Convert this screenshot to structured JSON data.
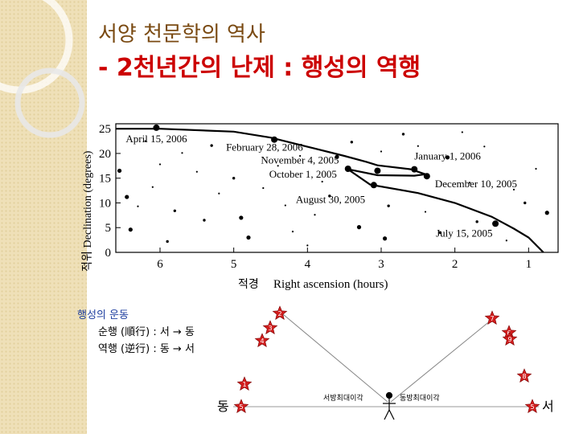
{
  "slide": {
    "title_line1": "서양 천문학의 역사",
    "title_line2": "- 2천년간의 난제 : 행성의 역행"
  },
  "chart_data": {
    "type": "scatter",
    "xlabel_ko": "적경",
    "xlabel": "Right ascension (hours)",
    "ylabel_ko": "적위",
    "ylabel": "Declination (degrees)",
    "xlim": [
      0.6,
      6.6
    ],
    "ylim": [
      0,
      26
    ],
    "x_reversed": true,
    "x_ticks": [
      6,
      5,
      4,
      3,
      2,
      1
    ],
    "y_ticks": [
      0,
      5,
      10,
      15,
      20,
      25
    ],
    "path": {
      "x": [
        6.6,
        6.0,
        5.0,
        4.5,
        3.9,
        3.5,
        3.2,
        3.05,
        2.6,
        2.4,
        2.55,
        3.05,
        3.45,
        3.15,
        2.5,
        2.0,
        1.5,
        1.2,
        1.0,
        0.8
      ],
      "y": [
        25.0,
        25.0,
        24.4,
        23.2,
        21.0,
        19.5,
        18.3,
        17.6,
        16.8,
        15.8,
        15.5,
        15.6,
        16.8,
        13.7,
        12.0,
        10.0,
        7.2,
        4.8,
        3.0,
        0.0
      ]
    },
    "labeled_points": [
      {
        "label": "April 15, 2006",
        "x": 6.05,
        "y": 25.2
      },
      {
        "label": "February 28, 2006",
        "x": 4.45,
        "y": 22.8
      },
      {
        "label": "January 1, 2006",
        "x": 2.55,
        "y": 16.8
      },
      {
        "label": "December 10, 2005",
        "x": 2.38,
        "y": 15.4
      },
      {
        "label": "November 4, 2005",
        "x": 3.05,
        "y": 16.5
      },
      {
        "label": "October 1, 2005",
        "x": 3.45,
        "y": 16.9
      },
      {
        "label": "August 30, 2005",
        "x": 3.1,
        "y": 13.6
      },
      {
        "label": "July 15, 2005",
        "x": 1.45,
        "y": 5.8
      }
    ],
    "stars": [
      {
        "x": 6.55,
        "y": 16.5
      },
      {
        "x": 4.4,
        "y": 17.5
      },
      {
        "x": 4.1,
        "y": 19.5
      },
      {
        "x": 5.4,
        "y": 6.5
      },
      {
        "x": 3.9,
        "y": 7.6
      },
      {
        "x": 2.95,
        "y": 2.8
      },
      {
        "x": 1.05,
        "y": 10.0
      },
      {
        "x": 4.3,
        "y": 9.5
      },
      {
        "x": 6.1,
        "y": 13.2
      },
      {
        "x": 5.0,
        "y": 15.0
      },
      {
        "x": 2.1,
        "y": 19.2
      },
      {
        "x": 1.6,
        "y": 21.4
      },
      {
        "x": 3.4,
        "y": 22.3
      },
      {
        "x": 5.7,
        "y": 20.1
      },
      {
        "x": 6.3,
        "y": 9.3
      },
      {
        "x": 4.8,
        "y": 3.0
      },
      {
        "x": 2.4,
        "y": 8.2
      },
      {
        "x": 1.8,
        "y": 14.1
      },
      {
        "x": 3.7,
        "y": 11.4
      },
      {
        "x": 5.2,
        "y": 11.9
      },
      {
        "x": 6.4,
        "y": 4.6
      },
      {
        "x": 2.7,
        "y": 23.9
      },
      {
        "x": 0.9,
        "y": 16.9
      },
      {
        "x": 4.6,
        "y": 13.0
      },
      {
        "x": 5.9,
        "y": 2.2
      },
      {
        "x": 3.3,
        "y": 5.1
      },
      {
        "x": 1.3,
        "y": 2.4
      },
      {
        "x": 2.2,
        "y": 4.0
      },
      {
        "x": 6.0,
        "y": 17.8
      },
      {
        "x": 4.0,
        "y": 1.4
      },
      {
        "x": 3.6,
        "y": 19.3
      },
      {
        "x": 1.2,
        "y": 12.7
      },
      {
        "x": 5.5,
        "y": 16.3
      },
      {
        "x": 2.9,
        "y": 9.4
      },
      {
        "x": 6.2,
        "y": 22.5
      },
      {
        "x": 4.9,
        "y": 7.0
      },
      {
        "x": 1.7,
        "y": 6.2
      },
      {
        "x": 2.5,
        "y": 21.5
      },
      {
        "x": 3.8,
        "y": 14.3
      },
      {
        "x": 5.3,
        "y": 21.6
      },
      {
        "x": 0.75,
        "y": 8.0
      },
      {
        "x": 4.2,
        "y": 4.2
      },
      {
        "x": 5.8,
        "y": 8.4
      },
      {
        "x": 3.0,
        "y": 20.4
      },
      {
        "x": 1.9,
        "y": 24.3
      },
      {
        "x": 6.45,
        "y": 11.2
      }
    ]
  },
  "motion": {
    "heading": "행성의 운동",
    "line1": "순행 (順行) : 서 → 동",
    "line2": "역행 (逆行) : 동 → 서"
  },
  "diagram": {
    "left_label": "동",
    "right_label": "서",
    "west_caption": "서방최대이각",
    "east_caption": "동방최대이각",
    "left_markers": [
      "4",
      "3",
      "2",
      "1",
      "5"
    ],
    "right_markers": [
      "7",
      "6",
      "9",
      "8",
      "5"
    ]
  }
}
